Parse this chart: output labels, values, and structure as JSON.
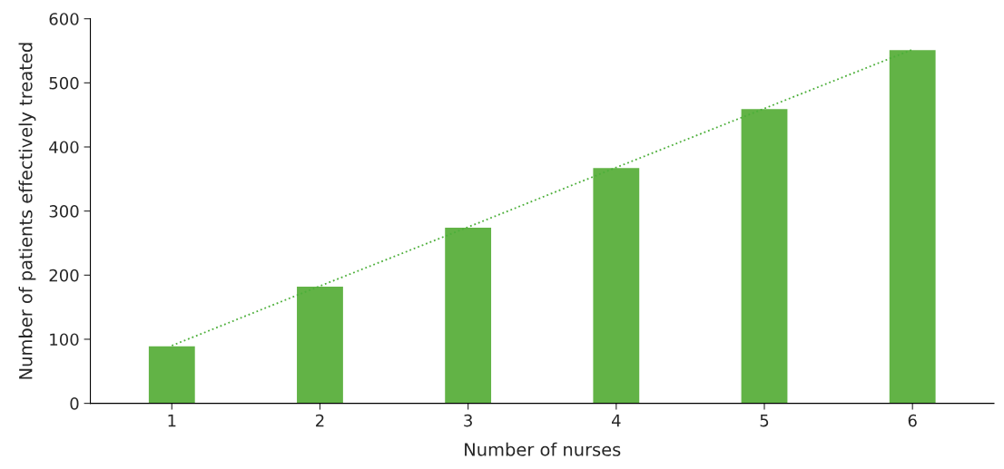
{
  "chart_data": {
    "type": "bar",
    "xlabel": "Number of nurses",
    "ylabel": "Number of patients effectively treated",
    "categories": [
      "1",
      "2",
      "3",
      "4",
      "5",
      "6"
    ],
    "series": [
      {
        "color": "#62b346",
        "values": [
          90,
          183,
          275,
          368,
          460,
          552
        ]
      },
      {
        "type": "line",
        "color": "#4caf3a",
        "line_style": "dotted",
        "values": [
          90,
          183,
          275,
          368,
          460,
          552
        ]
      }
    ],
    "ylim": [
      0,
      600
    ],
    "yticks": [
      0,
      100,
      200,
      300,
      400,
      500,
      600
    ],
    "grid": false,
    "legend": false
  }
}
